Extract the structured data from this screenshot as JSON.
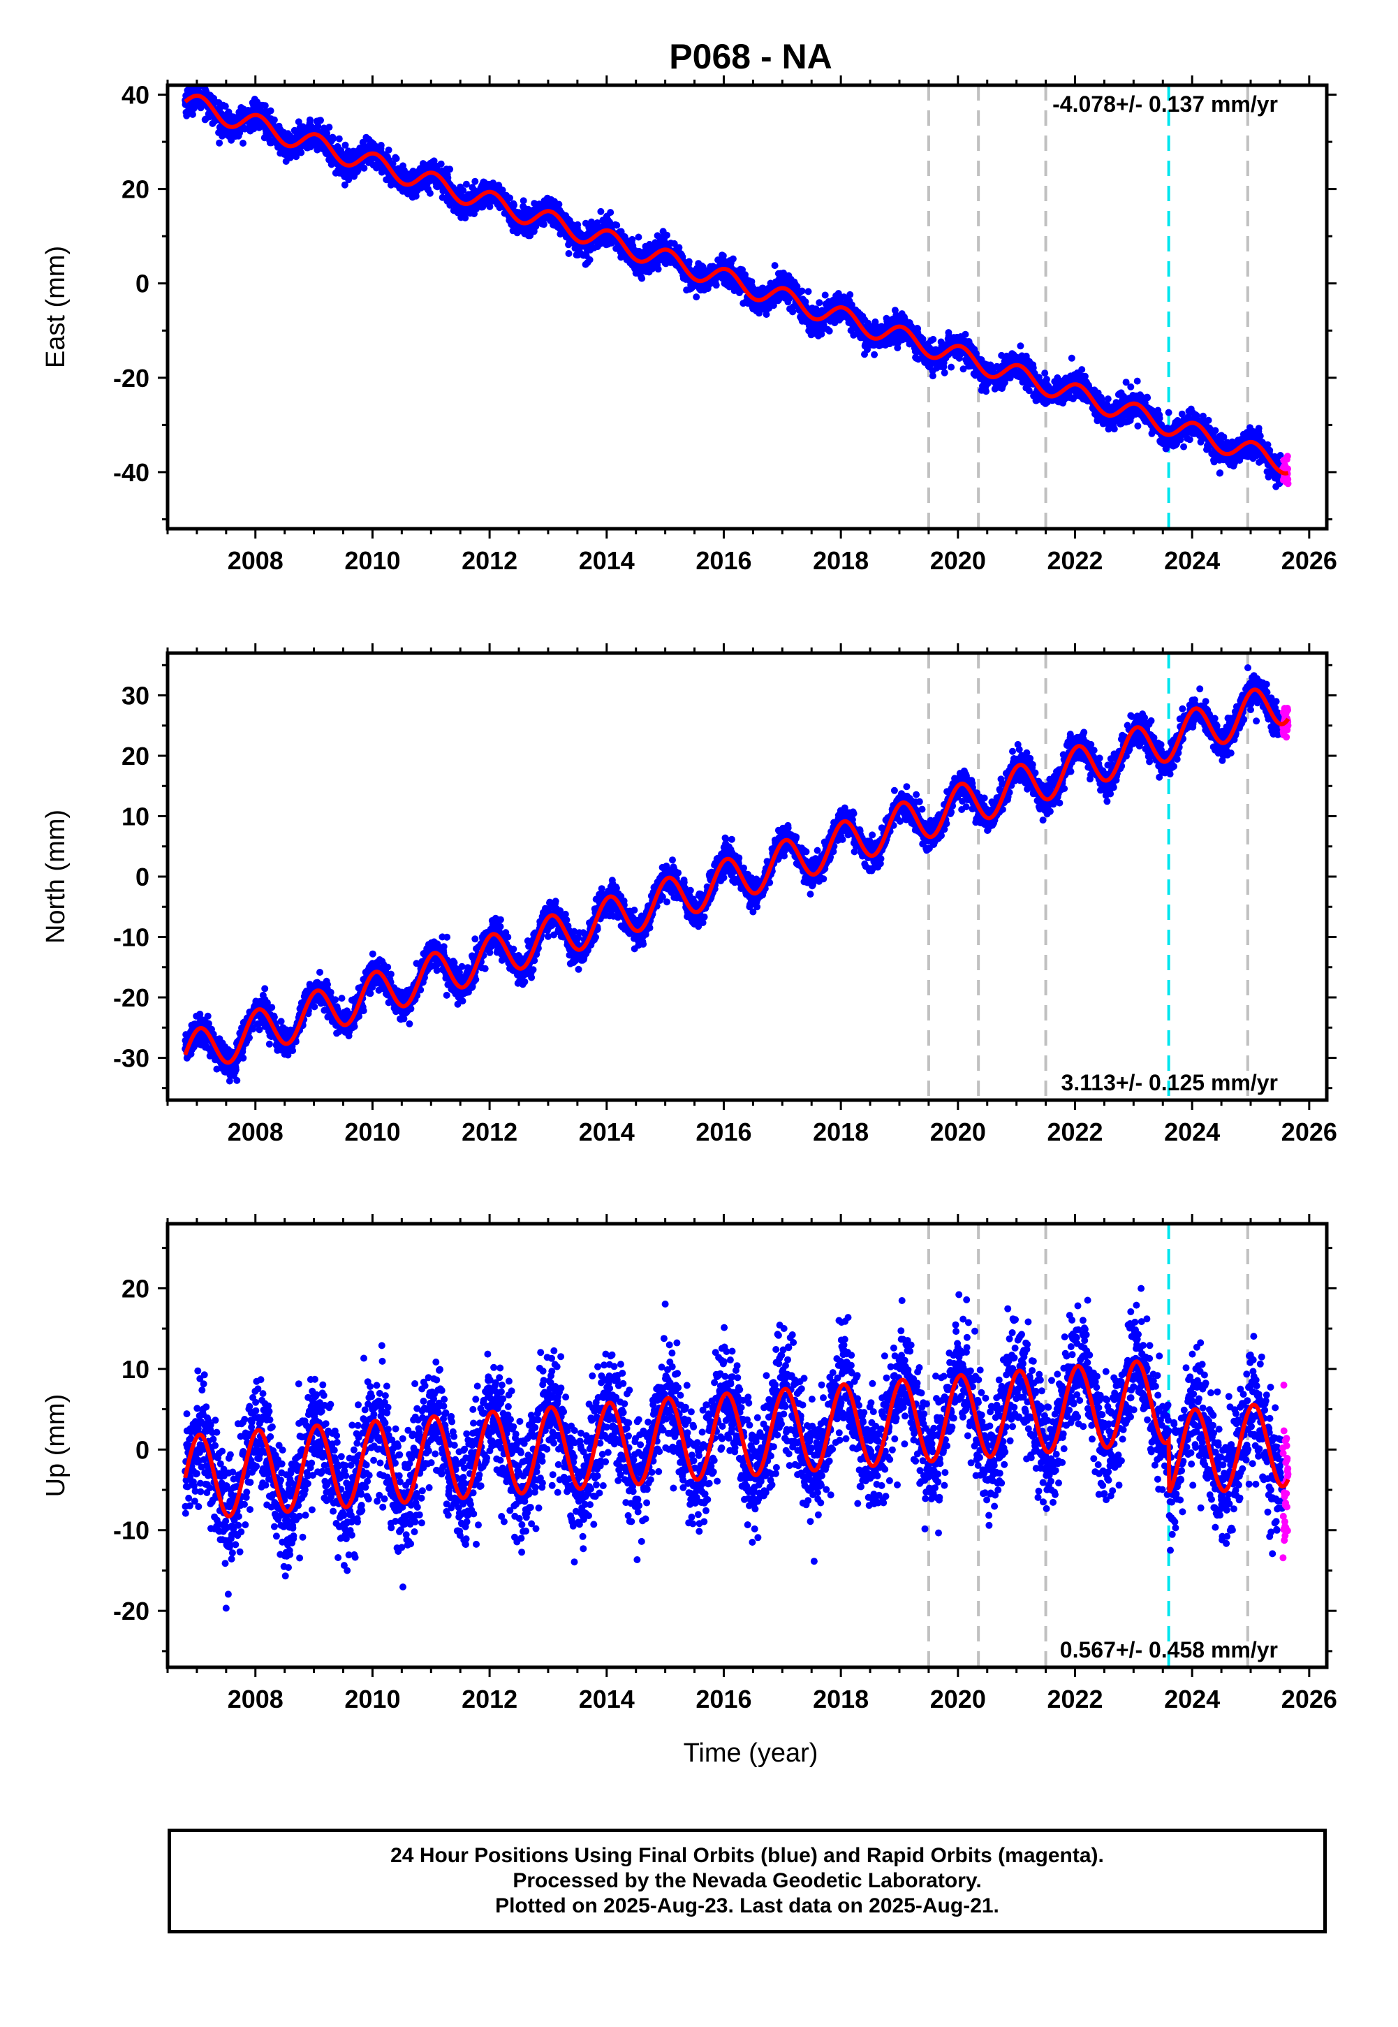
{
  "figure": {
    "title": "P068 - NA",
    "xlabel": "Time (year)"
  },
  "chart_data": [
    {
      "type": "scatter",
      "panel": "east",
      "ylabel": "East (mm)",
      "rate_text": "-4.078+/- 0.137 mm/yr",
      "rate_position": "top-right",
      "xlim": [
        2006.5,
        2026.3
      ],
      "ylim": [
        -52,
        42
      ],
      "xticks": [
        2008,
        2010,
        2012,
        2014,
        2016,
        2018,
        2020,
        2022,
        2024,
        2026
      ],
      "yticks": [
        -40,
        -20,
        0,
        20,
        40
      ],
      "start_value": 38.5,
      "rate": -4.078,
      "annual_amplitude": 2.2,
      "noise": 1.5,
      "offsets": [
        {
          "t": 2023.6,
          "dy": 0
        }
      ],
      "series": [
        {
          "role": "final-orbits",
          "color": "#0000ff",
          "t_start": 2006.8,
          "t_end": 2025.55
        },
        {
          "role": "rapid-orbits",
          "color": "#ff00ff",
          "t_start": 2025.55,
          "t_end": 2025.64
        },
        {
          "role": "model-fit",
          "color": "#ff0000"
        }
      ]
    },
    {
      "type": "scatter",
      "panel": "north",
      "ylabel": "North (mm)",
      "rate_text": "3.113+/- 0.125 mm/yr",
      "rate_position": "bottom-right",
      "xlim": [
        2006.5,
        2026.3
      ],
      "ylim": [
        -37,
        37
      ],
      "xticks": [
        2008,
        2010,
        2012,
        2014,
        2016,
        2018,
        2020,
        2022,
        2024,
        2026
      ],
      "yticks": [
        -30,
        -20,
        -10,
        0,
        10,
        20,
        30
      ],
      "start_value": -29.5,
      "rate": 3.113,
      "annual_amplitude": 3.6,
      "noise": 1.3,
      "offsets": [],
      "series": [
        {
          "role": "final-orbits",
          "color": "#0000ff",
          "t_start": 2006.8,
          "t_end": 2025.55
        },
        {
          "role": "rapid-orbits",
          "color": "#ff00ff",
          "t_start": 2025.55,
          "t_end": 2025.64
        },
        {
          "role": "model-fit",
          "color": "#ff0000"
        }
      ]
    },
    {
      "type": "scatter",
      "panel": "up",
      "ylabel": "Up (mm)",
      "rate_text": "0.567+/- 0.458 mm/yr",
      "rate_position": "bottom-right",
      "xlim": [
        2006.5,
        2026.3
      ],
      "ylim": [
        -27,
        28
      ],
      "xticks": [
        2008,
        2010,
        2012,
        2014,
        2016,
        2018,
        2020,
        2022,
        2024,
        2026
      ],
      "yticks": [
        -20,
        -10,
        0,
        10,
        20
      ],
      "start_value": -3.5,
      "rate": 0.567,
      "annual_amplitude": 5.2,
      "noise": 3.6,
      "offsets": [
        {
          "t": 2023.6,
          "dy": -6.5
        }
      ],
      "series": [
        {
          "role": "final-orbits",
          "color": "#0000ff",
          "t_start": 2006.8,
          "t_end": 2025.55
        },
        {
          "role": "rapid-orbits",
          "color": "#ff00ff",
          "t_start": 2025.55,
          "t_end": 2025.64
        },
        {
          "role": "model-fit",
          "color": "#ff0000"
        }
      ]
    }
  ],
  "event_lines": [
    {
      "t": 2019.5,
      "color": "#c0c0c0"
    },
    {
      "t": 2020.35,
      "color": "#c0c0c0"
    },
    {
      "t": 2021.5,
      "color": "#c0c0c0"
    },
    {
      "t": 2023.6,
      "color": "#00e5ee"
    },
    {
      "t": 2024.95,
      "color": "#c0c0c0"
    }
  ],
  "caption": {
    "line1": "24 Hour Positions Using Final Orbits (blue) and Rapid Orbits (magenta).",
    "line2": "Processed by the Nevada Geodetic Laboratory.",
    "line3": "Plotted on 2025-Aug-23. Last data on 2025-Aug-21."
  }
}
